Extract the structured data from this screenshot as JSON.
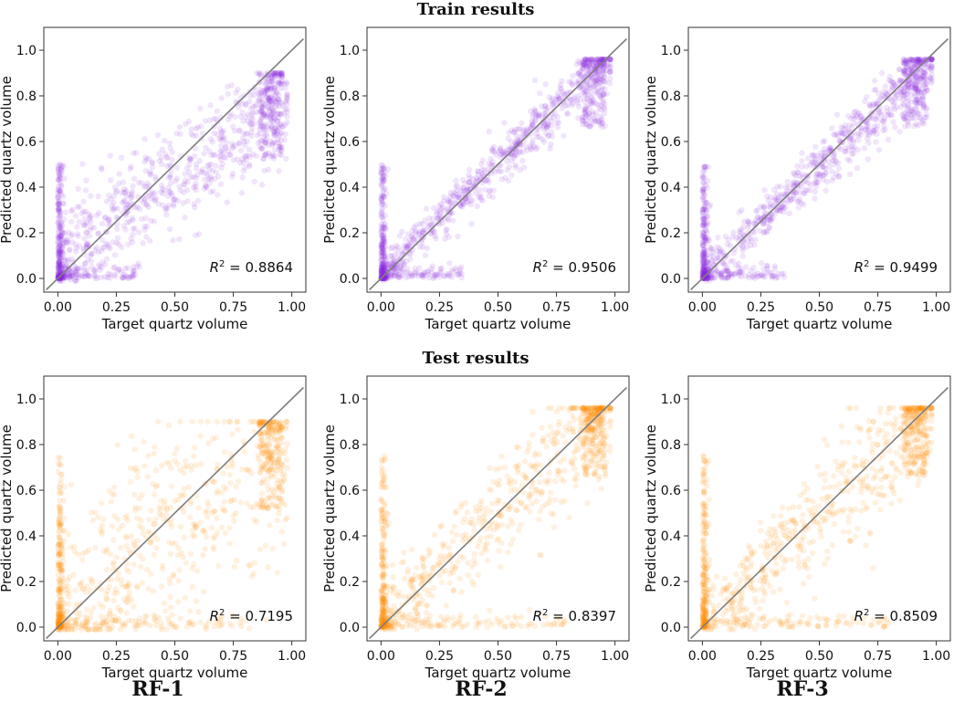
{
  "figure": {
    "row_titles": [
      "Train results",
      "Test results"
    ],
    "column_labels": [
      "RF-1",
      "RF-2",
      "RF-3"
    ],
    "colors": {
      "train": "#8a2be2",
      "test": "#ff8c00",
      "identity_line": "#7f7f7f",
      "frame": "#333333"
    }
  },
  "chart_data": [
    {
      "type": "scatter",
      "row": 0,
      "col": 0,
      "model": "RF-1",
      "set": "train",
      "point_color": "#8a2be2",
      "xlabel": "Target quartz volume",
      "ylabel": "Predicted quartz volume",
      "xlim": [
        -0.06,
        1.06
      ],
      "ylim": [
        -0.06,
        1.1
      ],
      "xticks": [
        "0.00",
        "0.25",
        "0.50",
        "0.75",
        "1.00"
      ],
      "yticks": [
        "0.0",
        "0.2",
        "0.4",
        "0.6",
        "0.8",
        "1.0"
      ],
      "r2_label": "= 0.8864",
      "identity_line": [
        [
          -0.05,
          -0.05
        ],
        [
          1.05,
          1.05
        ]
      ]
    },
    {
      "type": "scatter",
      "row": 0,
      "col": 1,
      "model": "RF-2",
      "set": "train",
      "point_color": "#8a2be2",
      "xlabel": "Target quartz volume",
      "ylabel": "Predicted quartz volume",
      "xlim": [
        -0.06,
        1.06
      ],
      "ylim": [
        -0.06,
        1.1
      ],
      "xticks": [
        "0.00",
        "0.25",
        "0.50",
        "0.75",
        "1.00"
      ],
      "yticks": [
        "0.0",
        "0.2",
        "0.4",
        "0.6",
        "0.8",
        "1.0"
      ],
      "r2_label": "= 0.9506",
      "identity_line": [
        [
          -0.05,
          -0.05
        ],
        [
          1.05,
          1.05
        ]
      ]
    },
    {
      "type": "scatter",
      "row": 0,
      "col": 2,
      "model": "RF-3",
      "set": "train",
      "point_color": "#8a2be2",
      "xlabel": "Target quartz volume",
      "ylabel": "Predicted quartz volume",
      "xlim": [
        -0.06,
        1.06
      ],
      "ylim": [
        -0.06,
        1.1
      ],
      "xticks": [
        "0.00",
        "0.25",
        "0.50",
        "0.75",
        "1.00"
      ],
      "yticks": [
        "0.0",
        "0.2",
        "0.4",
        "0.6",
        "0.8",
        "1.0"
      ],
      "r2_label": "= 0.9499",
      "identity_line": [
        [
          -0.05,
          -0.05
        ],
        [
          1.05,
          1.05
        ]
      ]
    },
    {
      "type": "scatter",
      "row": 1,
      "col": 0,
      "model": "RF-1",
      "set": "test",
      "point_color": "#ff8c00",
      "xlabel": "Target quartz volume",
      "ylabel": "Predicted quartz volume",
      "xlim": [
        -0.06,
        1.06
      ],
      "ylim": [
        -0.06,
        1.1
      ],
      "xticks": [
        "0.00",
        "0.25",
        "0.50",
        "0.75",
        "1.00"
      ],
      "yticks": [
        "0.0",
        "0.2",
        "0.4",
        "0.6",
        "0.8",
        "1.0"
      ],
      "r2_label": "= 0.7195",
      "identity_line": [
        [
          -0.05,
          -0.05
        ],
        [
          1.05,
          1.05
        ]
      ]
    },
    {
      "type": "scatter",
      "row": 1,
      "col": 1,
      "model": "RF-2",
      "set": "test",
      "point_color": "#ff8c00",
      "xlabel": "Target quartz volume",
      "ylabel": "Predicted quartz volume",
      "xlim": [
        -0.06,
        1.06
      ],
      "ylim": [
        -0.06,
        1.1
      ],
      "xticks": [
        "0.00",
        "0.25",
        "0.50",
        "0.75",
        "1.00"
      ],
      "yticks": [
        "0.0",
        "0.2",
        "0.4",
        "0.6",
        "0.8",
        "1.0"
      ],
      "r2_label": "= 0.8397",
      "identity_line": [
        [
          -0.05,
          -0.05
        ],
        [
          1.05,
          1.05
        ]
      ]
    },
    {
      "type": "scatter",
      "row": 1,
      "col": 2,
      "model": "RF-3",
      "set": "test",
      "point_color": "#ff8c00",
      "xlabel": "Target quartz volume",
      "ylabel": "Predicted quartz volume",
      "xlim": [
        -0.06,
        1.06
      ],
      "ylim": [
        -0.06,
        1.1
      ],
      "xticks": [
        "0.00",
        "0.25",
        "0.50",
        "0.75",
        "1.00"
      ],
      "yticks": [
        "0.0",
        "0.2",
        "0.4",
        "0.6",
        "0.8",
        "1.0"
      ],
      "r2_label": "= 0.8509",
      "identity_line": [
        [
          -0.05,
          -0.05
        ],
        [
          1.05,
          1.05
        ]
      ]
    }
  ]
}
